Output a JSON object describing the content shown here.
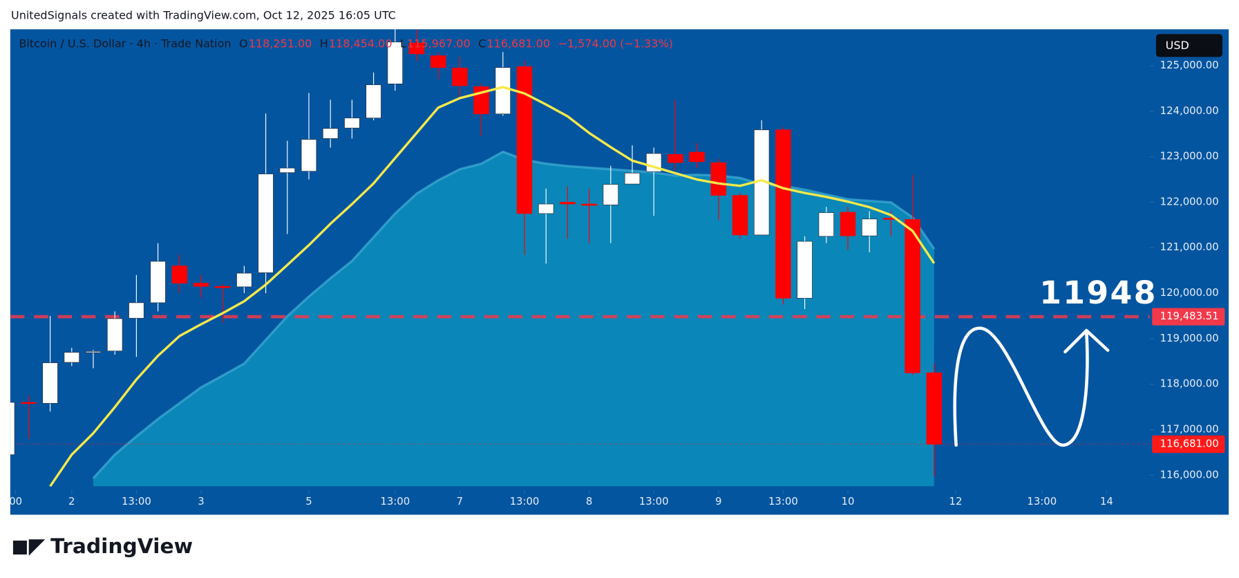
{
  "chart_data": {
    "type": "candlestick",
    "watermark": "UnitedSignals created with TradingView.com, Oct 12, 2025 16:05 UTC",
    "title": "Bitcoin / U.S. Dollar · 4h · Trade Nation",
    "ohlc_legend": [
      {
        "key": "O",
        "label": "118,251.00"
      },
      {
        "key": "H",
        "label": "118,454.00"
      },
      {
        "key": "L",
        "label": "115,967.00"
      },
      {
        "key": "C",
        "label": "116,681.00"
      }
    ],
    "change_label": "−1,574.00 (−1.33%)",
    "currency": "USD",
    "brand": "TradingView",
    "annotation": "11948",
    "x": [
      0,
      1,
      2,
      3,
      4,
      5,
      6,
      7,
      8,
      9,
      10,
      11,
      12,
      13,
      14,
      15,
      16,
      17,
      18,
      19,
      20,
      21,
      22,
      23,
      24,
      25,
      26,
      27,
      28,
      29,
      30,
      31,
      32,
      33,
      34,
      35,
      36,
      37,
      38,
      39,
      40,
      41,
      42,
      43
    ],
    "open": [
      116450,
      117600,
      117580,
      118480,
      118700,
      118730,
      119450,
      119790,
      120600,
      120220,
      120150,
      120140,
      120450,
      122650,
      122680,
      123400,
      123630,
      123850,
      124600,
      125500,
      125220,
      124950,
      124540,
      123940,
      124980,
      121750,
      122000,
      121960,
      121940,
      122400,
      122670,
      123050,
      123100,
      122870,
      122150,
      121280,
      123590,
      119890,
      121250,
      121780,
      121260,
      121650,
      121620,
      118251
    ],
    "high": [
      117700,
      117750,
      119500,
      118800,
      118750,
      119600,
      120400,
      121100,
      120850,
      120400,
      120200,
      120600,
      123950,
      123350,
      124400,
      124250,
      124250,
      124850,
      125800,
      125800,
      125300,
      125200,
      124600,
      125300,
      125100,
      122300,
      122350,
      122300,
      122800,
      123250,
      123200,
      124250,
      123300,
      122950,
      122200,
      123800,
      123650,
      121250,
      121900,
      121900,
      121800,
      121800,
      122600,
      118454
    ],
    "low": [
      116300,
      116800,
      117400,
      118400,
      118350,
      118650,
      118600,
      119600,
      120000,
      119900,
      119350,
      120000,
      120000,
      121300,
      122500,
      123200,
      123400,
      123800,
      124450,
      125100,
      124700,
      124300,
      123450,
      123900,
      120850,
      120650,
      121200,
      121100,
      121100,
      122450,
      121700,
      122700,
      122750,
      121600,
      121200,
      121300,
      119750,
      119650,
      121100,
      120950,
      120900,
      121250,
      118200,
      115967
    ],
    "close": [
      117600,
      117580,
      118470,
      118700,
      118720,
      119440,
      119790,
      120700,
      120220,
      120150,
      120120,
      120440,
      122620,
      122750,
      123380,
      123620,
      123850,
      124580,
      125520,
      125260,
      124960,
      124560,
      123940,
      124960,
      121750,
      121960,
      121960,
      121930,
      122390,
      122640,
      123070,
      122870,
      122890,
      122150,
      121280,
      123590,
      119890,
      121140,
      121770,
      121260,
      121630,
      121620,
      118250,
      116681
    ],
    "up_color": "#ffffff",
    "down_color": "#ff0000",
    "series": [
      {
        "kind": "area",
        "color": "#0a86b8",
        "line_color": "#3aa6d0",
        "values": [
          null,
          null,
          null,
          null,
          115930,
          116452,
          116851,
          117233,
          117581,
          117928,
          118189,
          118450,
          118971,
          119492,
          119926,
          120326,
          120708,
          121229,
          121750,
          122185,
          122480,
          122723,
          122845,
          123106,
          122932,
          122845,
          122793,
          122758,
          122723,
          122689,
          122654,
          122584,
          122602,
          122584,
          122532,
          122393,
          122358,
          122272,
          122167,
          122063,
          122028,
          121994,
          121664,
          120969
        ]
      },
      {
        "kind": "line",
        "color": "#f5e94a",
        "values": [
          null,
          null,
          115757,
          116452,
          116921,
          117494,
          118102,
          118623,
          119058,
          119318,
          119561,
          119822,
          120187,
          120621,
          121056,
          121525,
          121959,
          122411,
          122967,
          123522,
          124078,
          124287,
          124409,
          124530,
          124391,
          124148,
          123887,
          123522,
          123210,
          122914,
          122775,
          122637,
          122498,
          122411,
          122359,
          122481,
          122307,
          122203,
          122116,
          122012,
          121890,
          121716,
          121369,
          120657
        ]
      }
    ],
    "price_line": {
      "value": 119483.51,
      "label": "119,483.51",
      "color": "#f2394a"
    },
    "last_price": {
      "value": 116681,
      "label": "116,681.00",
      "color": "#ff1a1a"
    },
    "xlim": [
      0.15,
      53
    ],
    "xticks": [
      {
        "value": 0.4,
        "label": "00"
      },
      {
        "value": 3,
        "label": "2"
      },
      {
        "value": 6,
        "label": "13:00"
      },
      {
        "value": 9,
        "label": "3"
      },
      {
        "value": 14,
        "label": "5"
      },
      {
        "value": 18,
        "label": "13:00"
      },
      {
        "value": 21,
        "label": "7"
      },
      {
        "value": 24,
        "label": "13:00"
      },
      {
        "value": 27,
        "label": "8"
      },
      {
        "value": 30,
        "label": "13:00"
      },
      {
        "value": 33,
        "label": "9"
      },
      {
        "value": 36,
        "label": "13:00"
      },
      {
        "value": 39,
        "label": "10"
      },
      {
        "value": 44,
        "label": "12"
      },
      {
        "value": 48,
        "label": "13:00"
      },
      {
        "value": 51,
        "label": "14"
      }
    ],
    "ylim": [
      115670,
      125800
    ],
    "yticks": [
      {
        "value": 116000,
        "label": "116,000.00"
      },
      {
        "value": 117000,
        "label": "117,000.00"
      },
      {
        "value": 118000,
        "label": "118,000.00"
      },
      {
        "value": 119000,
        "label": "119,000.00"
      },
      {
        "value": 120000,
        "label": "120,000.00"
      },
      {
        "value": 121000,
        "label": "121,000.00"
      },
      {
        "value": 122000,
        "label": "122,000.00"
      },
      {
        "value": 123000,
        "label": "123,000.00"
      },
      {
        "value": 124000,
        "label": "124,000.00"
      },
      {
        "value": 125000,
        "label": "125,000.00"
      }
    ],
    "grid": false
  }
}
